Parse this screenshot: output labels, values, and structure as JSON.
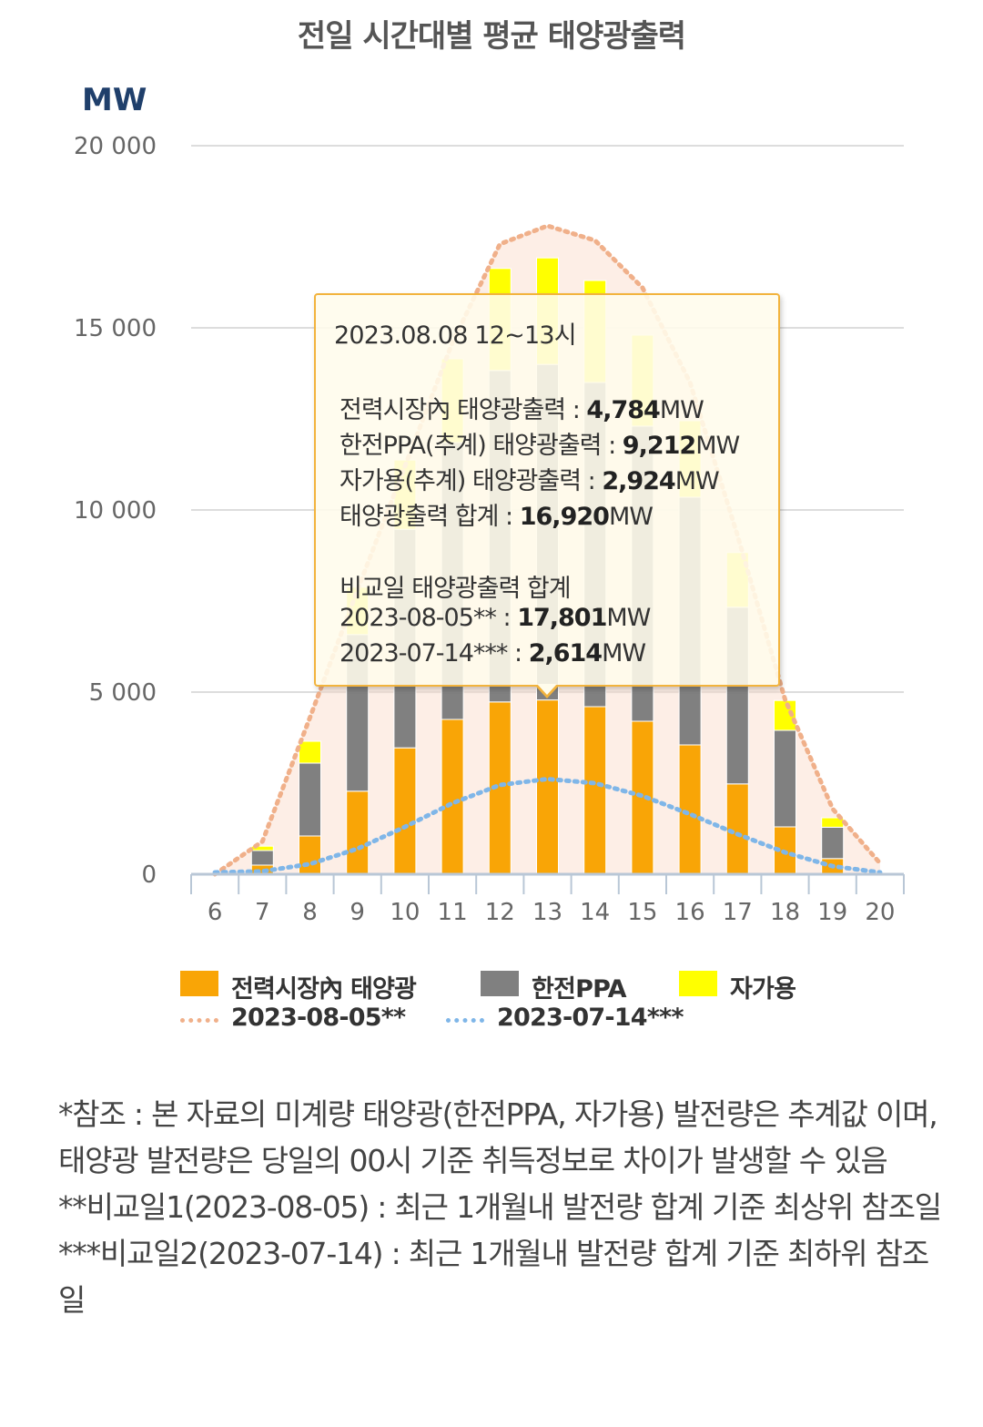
{
  "chart_data": {
    "type": "bar",
    "title": "전일 시간대별 평균 태양광출력",
    "ylabel": "MW",
    "ylim": [
      0,
      20000
    ],
    "yticks": [
      "0",
      "5 000",
      "10 000",
      "15 000",
      "20 000"
    ],
    "categories": [
      "6",
      "7",
      "8",
      "9",
      "10",
      "11",
      "12",
      "13",
      "14",
      "15",
      "16",
      "17",
      "18",
      "19",
      "20"
    ],
    "stacked": true,
    "series": [
      {
        "name": "전력시장內 태양광",
        "color": "#f9a506",
        "values": [
          0,
          250,
          1050,
          2280,
          3470,
          4250,
          4730,
          4784,
          4600,
          4200,
          3550,
          2480,
          1300,
          430,
          0
        ]
      },
      {
        "name": "한전PPA",
        "color": "#808080",
        "values": [
          0,
          400,
          2000,
          4300,
          6000,
          7600,
          9100,
          9212,
          8900,
          8100,
          6800,
          4850,
          2650,
          860,
          0
        ]
      },
      {
        "name": "자가용",
        "color": "#ffff00",
        "values": [
          0,
          120,
          600,
          1300,
          1900,
          2300,
          2800,
          2924,
          2800,
          2500,
          2100,
          1500,
          820,
          260,
          0
        ]
      }
    ],
    "lines": [
      {
        "name": "2023-08-05**",
        "color": "#f0b08a",
        "values": [
          0,
          900,
          4300,
          7800,
          11200,
          14600,
          17300,
          17801,
          17400,
          16100,
          13500,
          9300,
          4800,
          1800,
          300
        ]
      },
      {
        "name": "2023-07-14***",
        "color": "#7fb6e8",
        "values": [
          50,
          80,
          280,
          700,
          1300,
          1950,
          2450,
          2614,
          2500,
          2150,
          1650,
          1100,
          600,
          220,
          50
        ]
      }
    ],
    "legend": "bottom",
    "grid": true
  },
  "tooltip": {
    "header": "2023.08.08 12~13시",
    "l1_label": "전력시장內 태양광출력 : ",
    "l1_value": "4,784",
    "l1_unit": "MW",
    "l2_label": "한전PPA(추계) 태양광출력 : ",
    "l2_value": "9,212",
    "l2_unit": "MW",
    "l3_label": "자가용(추계) 태양광출력 : ",
    "l3_value": "2,924",
    "l3_unit": "MW",
    "l4_label": "태양광출력 합계 : ",
    "l4_value": "16,920",
    "l4_unit": "MW",
    "compare_title": "비교일 태양광출력 합계",
    "c1_label": "2023-08-05** : ",
    "c1_value": "17,801",
    "c1_unit": "MW",
    "c2_label": "2023-07-14*** : ",
    "c2_value": "2,614",
    "c2_unit": "MW"
  },
  "legend": {
    "market": "전력시장內 태양광",
    "ppa": "한전PPA",
    "self": "자가용",
    "compare1": "2023-08-05**",
    "compare2": "2023-07-14***"
  },
  "notes": {
    "n1": "*참조 : 본 자료의 미계량 태양광(한전PPA, 자가용) 발전량은 추계값 이며, 태양광 발전량은 당일의 00시 기준 취득정보로 차이가 발생할 수 있음",
    "n2": "**비교일1(2023-08-05) : 최근 1개월내 발전량 합계 기준 최상위 참조일",
    "n3": "***비교일2(2023-07-14) : 최근 1개월내 발전량 합계 기준 최하위 참조일"
  }
}
